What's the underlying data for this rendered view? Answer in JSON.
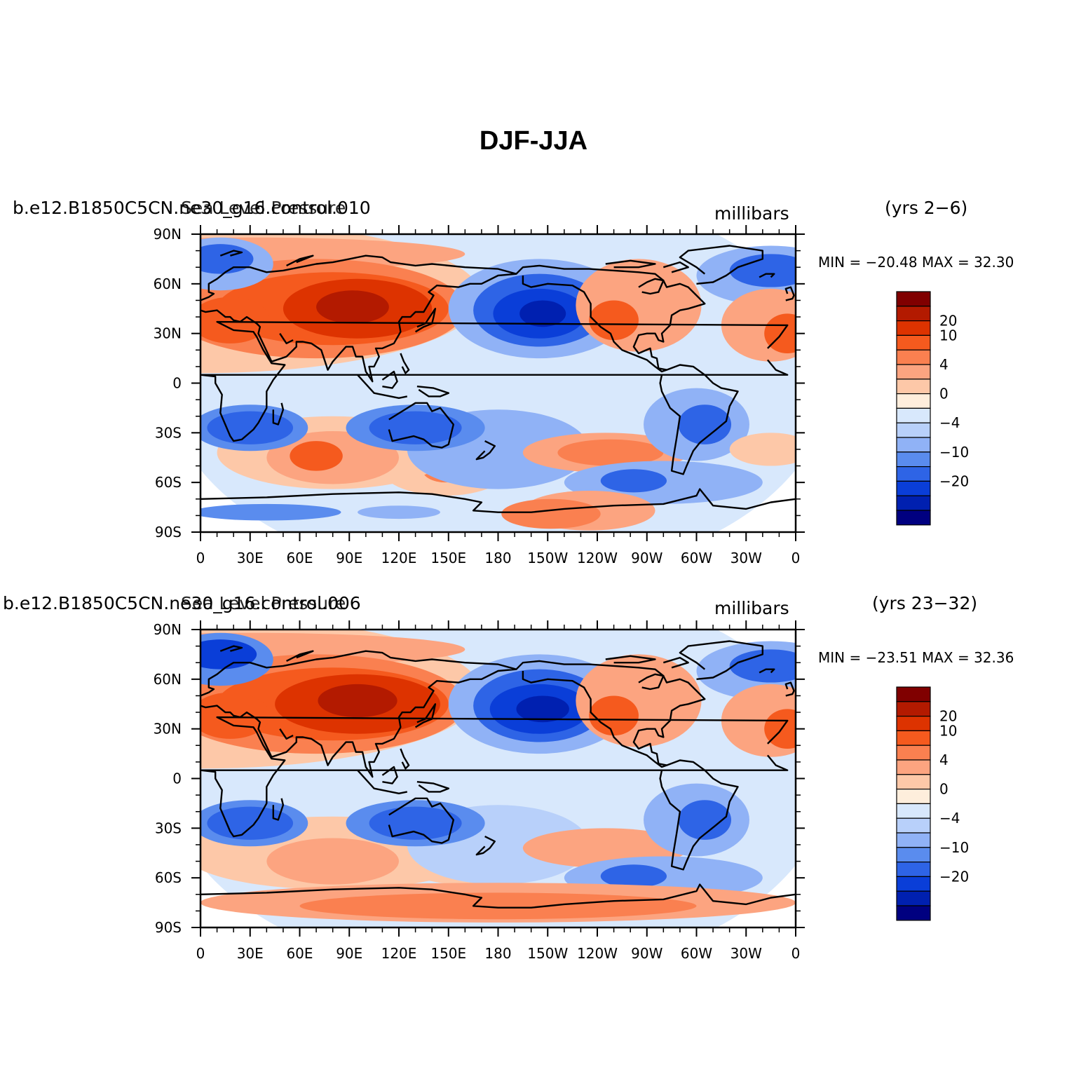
{
  "title": "DJF-JJA",
  "palette": [
    "#800000",
    "#b31a00",
    "#dd3300",
    "#f55a1e",
    "#fa8050",
    "#fca480",
    "#fdc8a8",
    "#feeedc",
    "#d8e8fc",
    "#b8d0fa",
    "#90b2f6",
    "#5a8cee",
    "#2e64e6",
    "#0a3ed8",
    "#0020b0",
    "#000080"
  ],
  "colorbar_labels": [
    {
      "label": "20",
      "boundary": 2
    },
    {
      "label": "10",
      "boundary": 3
    },
    {
      "label": "4",
      "boundary": 5
    },
    {
      "label": "0",
      "boundary": 7
    },
    {
      "label": "−4",
      "boundary": 9
    },
    {
      "label": "−10",
      "boundary": 11
    },
    {
      "label": "−20",
      "boundary": 13
    }
  ],
  "x_ticks": [
    "0",
    "30E",
    "60E",
    "90E",
    "120E",
    "150E",
    "180",
    "150W",
    "120W",
    "90W",
    "60W",
    "30W",
    "0"
  ],
  "y_ticks": [
    "90N",
    "60N",
    "30N",
    "0",
    "30S",
    "60S",
    "90S"
  ],
  "panels": [
    {
      "case": "b.e12.B1850C5CN.ne30_g16.control.010",
      "variable": "Sea Level Pressure",
      "units": "millibars",
      "years": "(yrs 2−6)",
      "stats": "MIN = −20.48 MAX =  32.30"
    },
    {
      "case": "b.e12.B1850C5CN.ne30_g16.control.006",
      "variable": "Sea Level Pressure",
      "units": "millibars",
      "years": "(yrs 23−32)",
      "stats": "MIN = −23.51 MAX =  32.36"
    }
  ]
}
